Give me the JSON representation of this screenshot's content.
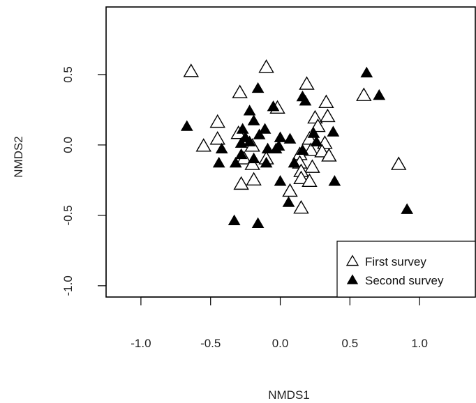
{
  "chart_data": {
    "type": "scatter",
    "xlabel": "NMDS1",
    "ylabel": "NMDS2",
    "xlim": [
      -1.25,
      1.4
    ],
    "ylim": [
      -1.08,
      0.98
    ],
    "xticks": [
      -1.0,
      -0.5,
      0.0,
      0.5,
      1.0
    ],
    "xtick_labels": [
      "-1.0",
      "-0.5",
      "0.0",
      "0.5",
      "1.0"
    ],
    "yticks": [
      -1.0,
      -0.5,
      0.0,
      0.5
    ],
    "ytick_labels": [
      "-1.0",
      "-0.5",
      "0.0",
      "0.5"
    ],
    "legend_position": "bottom-right",
    "series": [
      {
        "name": "First survey",
        "marker": "open-triangle",
        "color": "#000000",
        "points": [
          [
            -0.64,
            0.52
          ],
          [
            -0.1,
            0.55
          ],
          [
            0.19,
            0.43
          ],
          [
            -0.29,
            0.37
          ],
          [
            0.33,
            0.3
          ],
          [
            0.6,
            0.35
          ],
          [
            -0.02,
            0.26
          ],
          [
            0.25,
            0.19
          ],
          [
            0.34,
            0.2
          ],
          [
            -0.45,
            0.16
          ],
          [
            0.27,
            0.13
          ],
          [
            -0.3,
            0.08
          ],
          [
            -0.45,
            0.04
          ],
          [
            0.21,
            0.04
          ],
          [
            -0.55,
            -0.01
          ],
          [
            0.32,
            0.01
          ],
          [
            -0.2,
            -0.01
          ],
          [
            0.22,
            -0.04
          ],
          [
            0.3,
            -0.05
          ],
          [
            0.14,
            -0.07
          ],
          [
            0.35,
            -0.08
          ],
          [
            -0.26,
            -0.1
          ],
          [
            -0.1,
            -0.1
          ],
          [
            0.14,
            -0.13
          ],
          [
            -0.2,
            -0.14
          ],
          [
            0.23,
            -0.16
          ],
          [
            0.15,
            -0.19
          ],
          [
            0.15,
            -0.24
          ],
          [
            -0.19,
            -0.25
          ],
          [
            0.21,
            -0.26
          ],
          [
            -0.28,
            -0.28
          ],
          [
            0.07,
            -0.33
          ],
          [
            0.15,
            -0.45
          ],
          [
            0.85,
            -0.14
          ]
        ]
      },
      {
        "name": "Second survey",
        "marker": "filled-triangle",
        "color": "#000000",
        "points": [
          [
            0.62,
            0.51
          ],
          [
            0.71,
            0.35
          ],
          [
            -0.16,
            0.4
          ],
          [
            0.16,
            0.34
          ],
          [
            0.18,
            0.31
          ],
          [
            -0.05,
            0.27
          ],
          [
            -0.22,
            0.24
          ],
          [
            -0.19,
            0.17
          ],
          [
            -0.67,
            0.13
          ],
          [
            -0.27,
            0.11
          ],
          [
            -0.11,
            0.11
          ],
          [
            0.38,
            0.09
          ],
          [
            0.24,
            0.08
          ],
          [
            -0.25,
            0.05
          ],
          [
            -0.15,
            0.07
          ],
          [
            0.0,
            0.05
          ],
          [
            0.07,
            0.04
          ],
          [
            0.26,
            0.02
          ],
          [
            -0.22,
            0.02
          ],
          [
            -0.42,
            -0.03
          ],
          [
            -0.28,
            0.01
          ],
          [
            -0.09,
            -0.03
          ],
          [
            -0.03,
            -0.03
          ],
          [
            -0.01,
            -0.01
          ],
          [
            0.16,
            -0.04
          ],
          [
            -0.28,
            -0.07
          ],
          [
            -0.19,
            -0.1
          ],
          [
            -0.1,
            -0.13
          ],
          [
            -0.44,
            -0.13
          ],
          [
            -0.32,
            -0.13
          ],
          [
            0.1,
            -0.13
          ],
          [
            0.0,
            -0.26
          ],
          [
            0.39,
            -0.26
          ],
          [
            0.06,
            -0.41
          ],
          [
            -0.33,
            -0.54
          ],
          [
            -0.16,
            -0.56
          ],
          [
            0.91,
            -0.46
          ]
        ]
      }
    ]
  }
}
